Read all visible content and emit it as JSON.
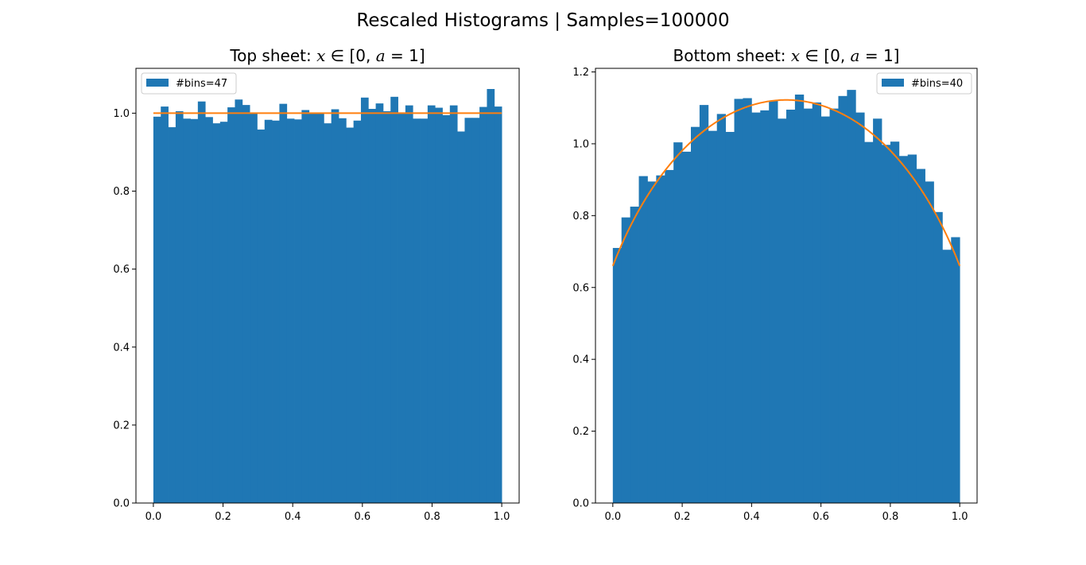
{
  "figure": {
    "suptitle": "Rescaled Histograms | Samples=100000"
  },
  "chart_data": [
    {
      "type": "bar",
      "title": "Top sheet: x ∈ [0, a = 1]",
      "title_parts": {
        "prefix": "Top sheet: ",
        "x": "x",
        "in": " ∈ [0, ",
        "a": "a",
        "suffix": " = 1]"
      },
      "xlabel": "",
      "ylabel": "",
      "xlim": [
        -0.05,
        1.05
      ],
      "ylim": [
        0,
        1.115
      ],
      "xticks": [
        0.0,
        0.2,
        0.4,
        0.6,
        0.8,
        1.0
      ],
      "xtick_labels": [
        "0.0",
        "0.2",
        "0.4",
        "0.6",
        "0.8",
        "1.0"
      ],
      "yticks": [
        0.0,
        0.2,
        0.4,
        0.6,
        0.8,
        1.0
      ],
      "ytick_labels": [
        "0.0",
        "0.2",
        "0.4",
        "0.6",
        "0.8",
        "1.0"
      ],
      "legend": {
        "label": "#bins=47",
        "location": "upper left"
      },
      "bar_color": "#1f77b4",
      "line_color": "#ff7f0e",
      "bin_range": [
        0,
        1
      ],
      "values": [
        0.991,
        1.017,
        0.964,
        1.005,
        0.986,
        0.985,
        1.03,
        0.99,
        0.974,
        0.978,
        1.015,
        1.035,
        1.021,
        0.999,
        0.958,
        0.983,
        0.981,
        1.024,
        0.986,
        0.984,
        1.008,
        0.999,
        1.0,
        0.974,
        1.01,
        0.987,
        0.963,
        0.981,
        1.04,
        1.011,
        1.025,
        1.005,
        1.042,
        1.002,
        1.02,
        0.986,
        0.986,
        1.02,
        1.014,
        0.995,
        1.02,
        0.953,
        0.988,
        0.988,
        1.016,
        1.062,
        1.017
      ],
      "curve": {
        "type": "constant",
        "value": 1.0
      }
    },
    {
      "type": "bar",
      "title": "Bottom sheet: x ∈ [0, a = 1]",
      "title_parts": {
        "prefix": "Bottom sheet: ",
        "x": "x",
        "in": " ∈ [0, ",
        "a": "a",
        "suffix": " = 1]"
      },
      "xlabel": "",
      "ylabel": "",
      "xlim": [
        -0.05,
        1.05
      ],
      "ylim": [
        0,
        1.21
      ],
      "xticks": [
        0.0,
        0.2,
        0.4,
        0.6,
        0.8,
        1.0
      ],
      "xtick_labels": [
        "0.0",
        "0.2",
        "0.4",
        "0.6",
        "0.8",
        "1.0"
      ],
      "yticks": [
        0.0,
        0.2,
        0.4,
        0.6,
        0.8,
        1.0,
        1.2
      ],
      "ytick_labels": [
        "0.0",
        "0.2",
        "0.4",
        "0.6",
        "0.8",
        "1.0",
        "1.2"
      ],
      "legend": {
        "label": "#bins=40",
        "location": "upper right"
      },
      "bar_color": "#1f77b4",
      "line_color": "#ff7f0e",
      "bin_range": [
        0,
        1
      ],
      "values": [
        0.71,
        0.795,
        0.825,
        0.91,
        0.895,
        0.912,
        0.927,
        1.004,
        0.978,
        1.047,
        1.108,
        1.036,
        1.083,
        1.033,
        1.125,
        1.127,
        1.087,
        1.093,
        1.12,
        1.07,
        1.095,
        1.137,
        1.098,
        1.115,
        1.076,
        1.098,
        1.133,
        1.15,
        1.087,
        1.005,
        1.07,
        0.997,
        1.006,
        0.966,
        0.97,
        0.93,
        0.895,
        0.81,
        0.705,
        0.74
      ],
      "curve": {
        "type": "semicircle",
        "center": 0.5,
        "peak": 1.122,
        "endpoint": 0.66
      }
    }
  ]
}
